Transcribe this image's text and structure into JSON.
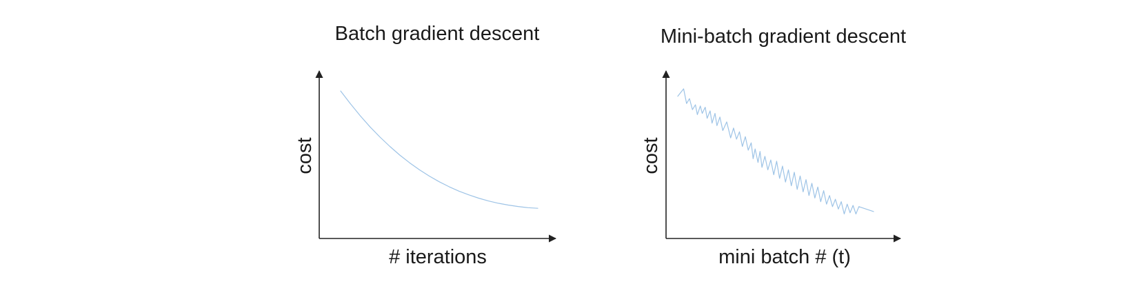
{
  "colors": {
    "series": "#9dc3e6",
    "axis": "#222222",
    "text": "#1a1a1a"
  },
  "chart_data": [
    {
      "type": "line",
      "title": "Batch gradient descent",
      "xlabel": "# iterations",
      "ylabel": "cost",
      "grid": false,
      "legend": "none",
      "ticks": "none",
      "series": [
        {
          "x": [
            0.0,
            0.05,
            0.1,
            0.15,
            0.2,
            0.25,
            0.3,
            0.35,
            0.4,
            0.45,
            0.5,
            0.55,
            0.6,
            0.65,
            0.7,
            0.75,
            0.8,
            0.85,
            0.9,
            0.95,
            1.0
          ],
          "values": [
            1.0,
            0.9,
            0.806,
            0.719,
            0.64,
            0.567,
            0.5,
            0.44,
            0.385,
            0.336,
            0.292,
            0.253,
            0.219,
            0.19,
            0.164,
            0.142,
            0.124,
            0.11,
            0.099,
            0.09,
            0.085
          ]
        }
      ]
    },
    {
      "type": "line",
      "title": "Mini-batch gradient descent",
      "xlabel": "mini batch # (t)",
      "ylabel": "cost",
      "grid": false,
      "legend": "none",
      "ticks": "none",
      "series": [
        {
          "x": [
            0.0,
            0.03,
            0.045,
            0.06,
            0.075,
            0.09,
            0.1,
            0.115,
            0.125,
            0.14,
            0.15,
            0.165,
            0.175,
            0.19,
            0.2,
            0.215,
            0.23,
            0.25,
            0.27,
            0.285,
            0.3,
            0.315,
            0.33,
            0.345,
            0.36,
            0.375,
            0.385,
            0.395,
            0.41,
            0.42,
            0.43,
            0.445,
            0.46,
            0.475,
            0.49,
            0.505,
            0.52,
            0.535,
            0.55,
            0.565,
            0.58,
            0.595,
            0.61,
            0.625,
            0.64,
            0.655,
            0.67,
            0.685,
            0.7,
            0.715,
            0.73,
            0.745,
            0.76,
            0.775,
            0.79,
            0.805,
            0.82,
            0.835,
            0.85,
            0.865,
            0.88,
            0.895,
            0.91,
            0.925,
            1.0
          ],
          "values": [
            0.98,
            1.04,
            0.92,
            0.96,
            0.87,
            0.91,
            0.83,
            0.9,
            0.84,
            0.89,
            0.8,
            0.86,
            0.76,
            0.84,
            0.74,
            0.81,
            0.7,
            0.77,
            0.64,
            0.72,
            0.63,
            0.69,
            0.57,
            0.65,
            0.54,
            0.6,
            0.47,
            0.55,
            0.44,
            0.53,
            0.4,
            0.49,
            0.38,
            0.46,
            0.34,
            0.45,
            0.31,
            0.41,
            0.28,
            0.38,
            0.25,
            0.36,
            0.22,
            0.33,
            0.2,
            0.3,
            0.17,
            0.27,
            0.15,
            0.24,
            0.12,
            0.21,
            0.1,
            0.17,
            0.08,
            0.14,
            0.06,
            0.12,
            0.02,
            0.1,
            0.03,
            0.09,
            0.02,
            0.08,
            0.04
          ]
        }
      ]
    }
  ]
}
